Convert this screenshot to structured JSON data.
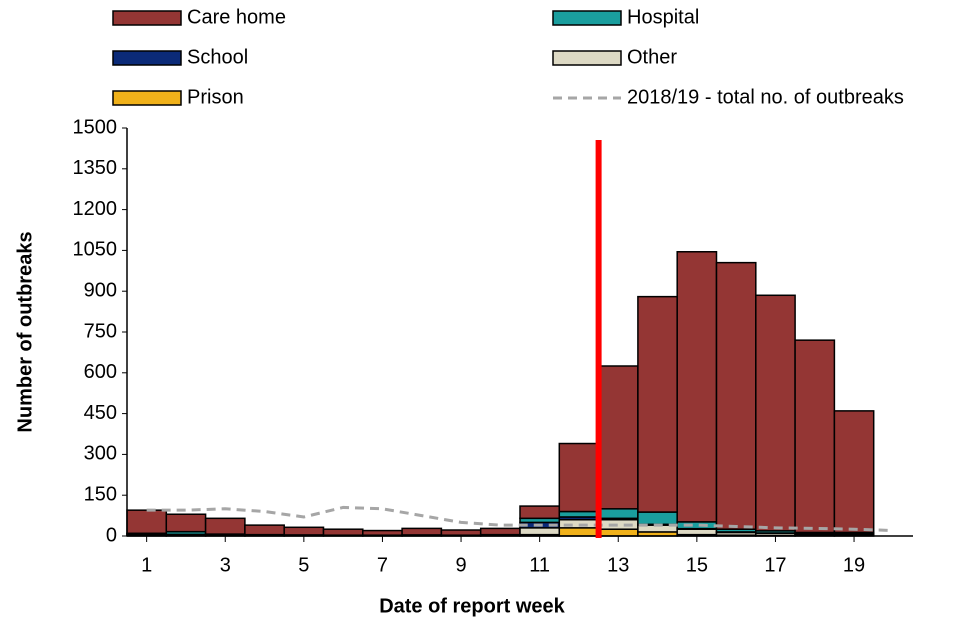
{
  "chart_data": {
    "type": "bar",
    "x_label": "Date of report week",
    "y_label": "Number of outbreaks",
    "x": [
      1,
      2,
      3,
      4,
      5,
      6,
      7,
      8,
      9,
      10,
      11,
      12,
      13,
      14,
      15,
      16,
      17,
      18,
      19
    ],
    "xlim": [
      0.5,
      20.5
    ],
    "xticks": [
      1,
      3,
      5,
      7,
      9,
      11,
      13,
      15,
      17,
      19
    ],
    "ylim": [
      0,
      1500
    ],
    "yticks": [
      0,
      150,
      300,
      450,
      600,
      750,
      900,
      1050,
      1200,
      1350,
      1500
    ],
    "stacked": true,
    "series": [
      {
        "name": "Care home",
        "color": "#943634",
        "values": [
          85,
          64,
          58,
          35,
          28,
          22,
          17,
          24,
          19,
          23,
          45,
          250,
          525,
          792,
          993,
          980,
          866,
          707,
          447
        ]
      },
      {
        "name": "Hospital",
        "color": "#1a9e9e",
        "values": [
          2,
          10,
          3,
          2,
          1,
          1,
          1,
          1,
          1,
          1,
          15,
          20,
          35,
          45,
          25,
          10,
          8,
          5,
          5
        ]
      },
      {
        "name": "School",
        "color": "#0b2a78",
        "values": [
          5,
          3,
          2,
          1,
          1,
          1,
          1,
          1,
          1,
          2,
          20,
          10,
          5,
          3,
          2,
          2,
          1,
          1,
          1
        ]
      },
      {
        "name": "Other",
        "color": "#ddd9c4",
        "values": [
          3,
          3,
          2,
          2,
          2,
          1,
          1,
          2,
          1,
          2,
          25,
          30,
          35,
          25,
          20,
          10,
          8,
          5,
          5
        ]
      },
      {
        "name": "Prison",
        "color": "#f0b11a",
        "values": [
          0,
          0,
          0,
          0,
          0,
          0,
          0,
          0,
          0,
          0,
          5,
          30,
          25,
          15,
          5,
          3,
          2,
          2,
          2
        ]
      },
      {
        "name": "2018/19 - total no. of outbreaks",
        "type": "line",
        "color": "#a6a6a6",
        "dashed": true,
        "x": [
          1,
          2,
          3,
          4,
          5,
          6,
          7,
          8,
          9,
          10,
          11,
          12,
          13,
          14,
          15,
          16,
          17,
          18,
          19,
          20
        ],
        "values": [
          95,
          95,
          100,
          90,
          70,
          105,
          100,
          75,
          50,
          40,
          40,
          40,
          40,
          40,
          40,
          35,
          30,
          28,
          25,
          20
        ]
      }
    ],
    "reference_line": {
      "x": 12.5,
      "color": "#ff0000"
    }
  }
}
